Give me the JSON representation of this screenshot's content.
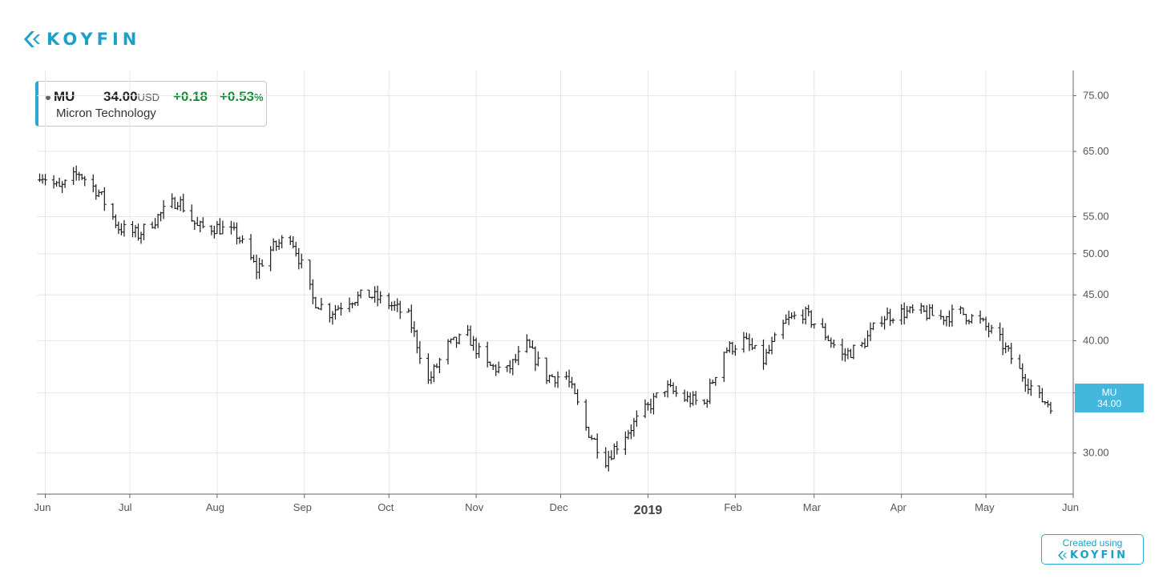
{
  "brand": {
    "name": "KOYFIN"
  },
  "quote": {
    "ticker": "MU",
    "price": "34.00",
    "currency": "USD",
    "change": "+0.18",
    "change_pct": "+0.53",
    "change_pct_sign": "%",
    "company": "Micron Technology"
  },
  "price_tag": {
    "ticker": "MU",
    "value": "34.00"
  },
  "footer_badge": {
    "created_using": "Created using",
    "brand": "KOYFIN"
  },
  "colors": {
    "accent": "#1ba1c8",
    "positive": "#1a8a3a",
    "bar": "#1a1a1a",
    "grid": "#e6e6e6"
  },
  "chart_data": {
    "type": "ohlc",
    "y_scale": "log",
    "ylim": [
      27,
      80
    ],
    "xlim": [
      "2018-05-29",
      "2019-06-01"
    ],
    "y_ticks": [
      "75.00",
      "65.00",
      "55.00",
      "50.00",
      "45.00",
      "40.00",
      "35.00",
      "30.00"
    ],
    "x_ticks": [
      "Jun",
      "Jul",
      "Aug",
      "Sep",
      "Oct",
      "Nov",
      "Dec",
      "2019",
      "Feb",
      "Mar",
      "Apr",
      "May",
      "Jun"
    ],
    "last_value": 34.0,
    "series": [
      {
        "x": [
          "2018-05-30",
          "2018-06-06",
          "2018-06-13",
          "2018-06-20",
          "2018-06-27",
          "2018-07-04",
          "2018-07-11",
          "2018-07-18",
          "2018-07-25",
          "2018-08-01",
          "2018-08-08",
          "2018-08-15",
          "2018-08-20",
          "2018-08-27",
          "2018-09-04",
          "2018-09-10",
          "2018-09-17",
          "2018-09-24",
          "2018-10-01",
          "2018-10-08",
          "2018-10-15",
          "2018-10-22",
          "2018-10-29",
          "2018-11-05",
          "2018-11-12",
          "2018-11-19",
          "2018-11-26",
          "2018-12-03",
          "2018-12-10",
          "2018-12-17",
          "2018-12-24",
          "2019-01-02",
          "2019-01-07",
          "2019-01-14",
          "2019-01-21",
          "2019-01-28",
          "2019-02-04",
          "2019-02-11",
          "2019-02-19",
          "2019-02-25",
          "2019-03-04",
          "2019-03-11",
          "2019-03-18",
          "2019-03-25",
          "2019-04-01",
          "2019-04-08",
          "2019-04-15",
          "2019-04-22",
          "2019-04-29",
          "2019-05-06",
          "2019-05-13",
          "2019-05-20",
          "2019-05-24"
        ],
        "values": [
          61.5,
          59.0,
          61.5,
          58.5,
          53.5,
          52.5,
          55.0,
          57.5,
          53.5,
          53.5,
          52.5,
          48.0,
          50.5,
          52.5,
          44.5,
          43.0,
          44.5,
          45.0,
          44.0,
          42.5,
          36.0,
          39.5,
          40.5,
          37.5,
          37.0,
          39.5,
          36.5,
          36.5,
          32.0,
          29.5,
          31.5,
          34.0,
          35.5,
          34.5,
          34.0,
          39.0,
          40.0,
          38.0,
          42.0,
          43.0,
          41.0,
          38.5,
          39.5,
          42.5,
          43.0,
          43.0,
          42.5,
          43.0,
          42.0,
          40.0,
          37.0,
          34.5,
          34.0
        ]
      }
    ]
  }
}
